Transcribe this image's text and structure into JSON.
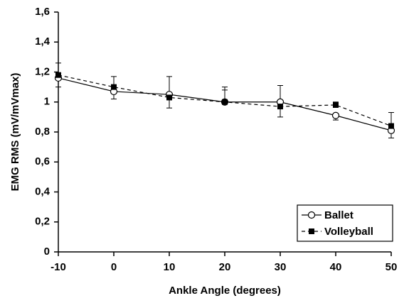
{
  "chart_data": {
    "type": "line",
    "x_label": "Ankle Angle (degrees)",
    "y_label": "EMG RMS (mV/mVmax)",
    "x": [
      -10,
      0,
      10,
      20,
      30,
      40,
      50
    ],
    "series": [
      {
        "name": "Ballet",
        "color": "#000000",
        "marker": "open-circle",
        "dash": false,
        "values": [
          1.16,
          1.07,
          1.05,
          1.0,
          1.0,
          0.91,
          0.81
        ],
        "errors": [
          0.06,
          0.05,
          0.12,
          0.1,
          0.11,
          0.03,
          0.05
        ]
      },
      {
        "name": "Volleyball",
        "color": "#000000",
        "marker": "filled-square",
        "dash": true,
        "values": [
          1.18,
          1.1,
          1.03,
          1.0,
          0.97,
          0.98,
          0.84
        ],
        "errors": [
          0.08,
          0.07,
          0.07,
          0.08,
          0.07,
          0.02,
          0.09
        ]
      }
    ],
    "xlim": [
      -10,
      50
    ],
    "xticks": [
      -10,
      0,
      10,
      20,
      30,
      40,
      50
    ],
    "ylim": [
      0,
      1.6
    ],
    "yticks": [
      0,
      {
        "value": 0.2,
        "label": "0,2"
      },
      {
        "value": 0.4,
        "label": "0,4"
      },
      {
        "value": 0.6,
        "label": "0,6"
      },
      {
        "value": 0.8,
        "label": "0,8"
      },
      1,
      {
        "value": 1.2,
        "label": "1,2"
      },
      {
        "value": 1.4,
        "label": "1,4"
      },
      {
        "value": 1.6,
        "label": "1,6"
      }
    ],
    "legend": "bottom-right",
    "grid": false
  }
}
